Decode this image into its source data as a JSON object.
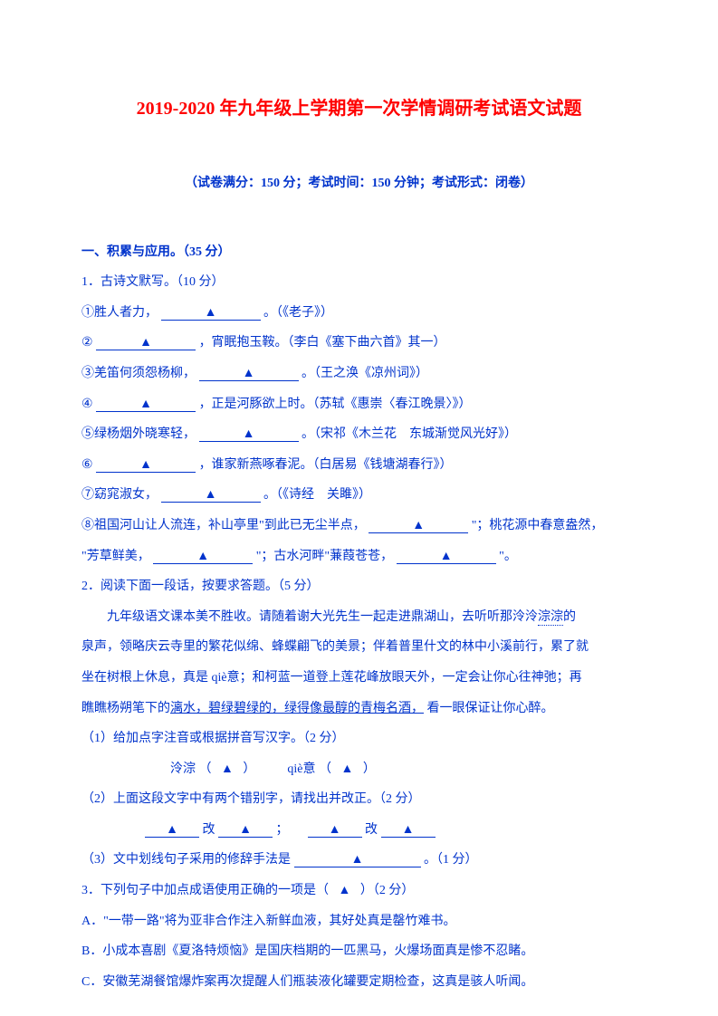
{
  "title": "2019-2020 年九年级上学期第一次学情调研考试语文试题",
  "subtitle": "（试卷满分：150 分；考试时间：150 分钟；考试形式：闭卷）",
  "section1_heading": "一、积累与应用。（35 分）",
  "q1": {
    "stem": "1．古诗文默写。（10 分）",
    "i1_a": "①胜人者力，",
    "i1_b": "。（《老子》）",
    "i2_a": "②",
    "i2_b": "，宵眠抱玉鞍。（李白《塞下曲六首》其一）",
    "i3_a": "③羌笛何须怨杨柳，",
    "i3_b": "。（王之涣《凉州词》）",
    "i4_a": "④",
    "i4_b": "，正是河豚欲上时。（苏轼《惠崇〈春江晚景〉》）",
    "i5_a": "⑤绿杨烟外晓寒轻，",
    "i5_b": "。（宋祁《木兰花　东城渐觉风光好》）",
    "i6_a": "⑥",
    "i6_b": "，谁家新燕啄春泥。（白居易《钱塘湖春行》）",
    "i7_a": "⑦窈窕淑女，",
    "i7_b": "。（《诗经　关雎》）",
    "i8_a": "⑧祖国河山让人流连，补山亭里\"到此已无尘半点，",
    "i8_b": "\"；桃花源中春意盎然，",
    "i8_c": "\"芳草鲜美，",
    "i8_d": "\"；古水河畔\"蒹葭苍苍，",
    "i8_e": "\"。"
  },
  "q2": {
    "stem": "2．阅读下面一段话，按要求答题。（5 分）",
    "para_a": "九年级语文课本美不胜收。请随着谢大光先生一起走进鼎湖山，去听听那泠泠",
    "para_a_dot": "淙淙",
    "para_a2": "的",
    "para_b": "泉声，领略庆云寺里的繁花似绵、蜂蝶翩飞的美景；伴着普里什文的林中小溪前行，累了就",
    "para_c": "坐在树根上休息，真是 qiè意；和柯蓝一道登上莲花峰放眼天外，一定会让你心往神弛；再",
    "para_d1": "瞧瞧杨朔笔下的",
    "para_d_ul": "漓水，碧绿碧绿的，绿得像最醇的青梅名酒，",
    "para_d2": "看一眼保证让你心醉。",
    "s1": "（1）给加点字注音或根据拼音写汉字。（2 分）",
    "s1_a": "泠淙",
    "s1_paren_l": "（",
    "s1_paren_r": "）",
    "s1_b": "qiè意 （",
    "s2": "（2）上面这段文字中有两个错别字，请找出并改正。（2 分）",
    "s2_change": "改",
    "s2_sep": "；",
    "s3_a": "（3）文中划线句子采用的修辞手法是",
    "s3_b": "。（1 分）"
  },
  "q3": {
    "stem_a": "3．下列句子中加点成语使用正确的一项是（",
    "stem_b": "）（2 分）",
    "a": "A．\"一带一路\"将为亚非合作注入新鲜血液，其好处真是罄竹难书。",
    "b": "B．小成本喜剧《夏洛特烦恼》是国庆档期的一匹黑马，火爆场面真是惨不忍睹。",
    "c": "C．安徽芜湖餐馆爆炸案再次提醒人们瓶装液化罐要定期检查，这真是骇人听闻。"
  },
  "tri": "▲"
}
